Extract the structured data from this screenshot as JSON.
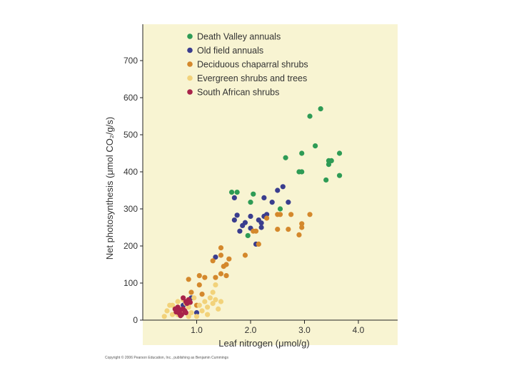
{
  "copyright": "Copyright © 2006 Pearson Education, Inc., publishing as Benjamin Cummings",
  "chart_data": {
    "type": "scatter",
    "xlabel": "Leaf nitrogen (μmol/g)",
    "ylabel": "Net photosynthesis (μmol CO₂/g/s)",
    "xlim": [
      0.0,
      4.6
    ],
    "ylim": [
      0,
      790
    ],
    "x_ticks": [
      "1.0",
      "2.0",
      "3.0",
      "4.0"
    ],
    "x_tick_values": [
      1.0,
      2.0,
      3.0,
      4.0
    ],
    "y_ticks": [
      "0",
      "100",
      "200",
      "300",
      "400",
      "500",
      "600",
      "700"
    ],
    "y_tick_values": [
      0,
      100,
      200,
      300,
      400,
      500,
      600,
      700
    ],
    "grid": false,
    "background": "#f8f4d2",
    "legend_position": "top-left",
    "series": [
      {
        "name": "Death Valley annuals",
        "color": "#2e9b55",
        "points": [
          [
            1.65,
            345
          ],
          [
            1.75,
            345
          ],
          [
            2.05,
            340
          ],
          [
            2.0,
            318
          ],
          [
            1.95,
            228
          ],
          [
            2.55,
            300
          ],
          [
            2.65,
            438
          ],
          [
            2.95,
            450
          ],
          [
            2.9,
            400
          ],
          [
            2.95,
            400
          ],
          [
            3.1,
            550
          ],
          [
            3.3,
            570
          ],
          [
            3.2,
            470
          ],
          [
            3.45,
            430
          ],
          [
            3.5,
            430
          ],
          [
            3.45,
            420
          ],
          [
            3.65,
            450
          ],
          [
            3.65,
            390
          ],
          [
            3.4,
            378
          ]
        ]
      },
      {
        "name": "Old field annuals",
        "color": "#3a3d8e",
        "points": [
          [
            1.7,
            330
          ],
          [
            1.75,
            283
          ],
          [
            1.7,
            270
          ],
          [
            1.85,
            255
          ],
          [
            1.8,
            240
          ],
          [
            2.0,
            280
          ],
          [
            2.0,
            248
          ],
          [
            2.15,
            270
          ],
          [
            2.2,
            262
          ],
          [
            2.25,
            330
          ],
          [
            2.2,
            250
          ],
          [
            2.3,
            285
          ],
          [
            2.1,
            205
          ],
          [
            2.4,
            318
          ],
          [
            2.5,
            350
          ],
          [
            2.6,
            360
          ],
          [
            2.7,
            318
          ],
          [
            2.25,
            280
          ],
          [
            1.9,
            263
          ],
          [
            1.35,
            170
          ],
          [
            0.75,
            40
          ],
          [
            0.9,
            60
          ],
          [
            1.0,
            20
          ]
        ]
      },
      {
        "name": "Deciduous chaparral shrubs",
        "color": "#d4882c",
        "points": [
          [
            0.85,
            110
          ],
          [
            1.05,
            120
          ],
          [
            1.15,
            115
          ],
          [
            1.05,
            95
          ],
          [
            1.1,
            70
          ],
          [
            1.0,
            40
          ],
          [
            0.9,
            75
          ],
          [
            1.3,
            160
          ],
          [
            1.45,
            175
          ],
          [
            1.5,
            145
          ],
          [
            1.55,
            150
          ],
          [
            1.45,
            125
          ],
          [
            1.55,
            120
          ],
          [
            1.45,
            195
          ],
          [
            1.9,
            175
          ],
          [
            2.05,
            240
          ],
          [
            2.1,
            240
          ],
          [
            2.15,
            205
          ],
          [
            2.3,
            275
          ],
          [
            2.5,
            285
          ],
          [
            2.55,
            285
          ],
          [
            2.75,
            285
          ],
          [
            2.5,
            245
          ],
          [
            2.7,
            245
          ],
          [
            2.9,
            230
          ],
          [
            2.95,
            260
          ],
          [
            2.95,
            250
          ],
          [
            3.1,
            285
          ],
          [
            1.6,
            165
          ],
          [
            1.35,
            115
          ]
        ]
      },
      {
        "name": "Evergreen shrubs and trees",
        "color": "#f2d27a",
        "points": [
          [
            0.4,
            10
          ],
          [
            0.45,
            25
          ],
          [
            0.5,
            40
          ],
          [
            0.55,
            40
          ],
          [
            0.6,
            30
          ],
          [
            0.65,
            15
          ],
          [
            0.7,
            25
          ],
          [
            0.75,
            55
          ],
          [
            0.8,
            45
          ],
          [
            0.85,
            35
          ],
          [
            0.9,
            20
          ],
          [
            0.95,
            60
          ],
          [
            1.0,
            10
          ],
          [
            1.05,
            40
          ],
          [
            1.1,
            25
          ],
          [
            1.15,
            50
          ],
          [
            1.2,
            35
          ],
          [
            1.25,
            60
          ],
          [
            1.3,
            45
          ],
          [
            1.35,
            55
          ],
          [
            1.3,
            75
          ],
          [
            1.4,
            30
          ],
          [
            1.45,
            50
          ],
          [
            0.55,
            15
          ],
          [
            0.65,
            50
          ],
          [
            0.85,
            10
          ],
          [
            1.2,
            15
          ],
          [
            1.35,
            95
          ]
        ]
      },
      {
        "name": "South African shrubs",
        "color": "#a8234a",
        "points": [
          [
            0.6,
            30
          ],
          [
            0.62,
            22
          ],
          [
            0.65,
            35
          ],
          [
            0.68,
            18
          ],
          [
            0.7,
            28
          ],
          [
            0.72,
            15
          ],
          [
            0.75,
            30
          ],
          [
            0.78,
            25
          ],
          [
            0.8,
            50
          ],
          [
            0.82,
            45
          ],
          [
            0.85,
            55
          ],
          [
            0.88,
            48
          ],
          [
            0.8,
            20
          ],
          [
            0.7,
            12
          ],
          [
            0.75,
            60
          ],
          [
            0.65,
            25
          ]
        ]
      }
    ]
  }
}
